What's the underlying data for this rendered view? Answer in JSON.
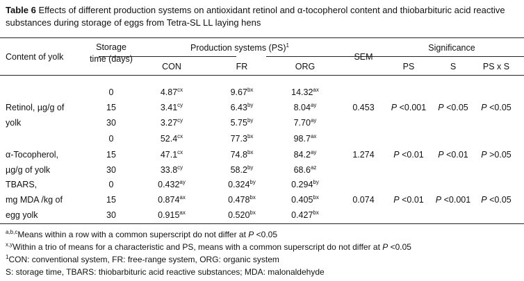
{
  "title": {
    "label": "Table 6",
    "text": "Effects of different production systems on antioxidant retinol and α-tocopherol content and thiobarbituric acid reactive substances during storage of eggs from Tetra-SL LL laying hens"
  },
  "header": {
    "content": "Content of yolk",
    "storage1": "Storage",
    "storage2": "time (days)",
    "ps": "Production systems (PS)",
    "ps_sup": "1",
    "con": "CON",
    "fr": "FR",
    "org": "ORG",
    "sem": "SEM",
    "significance": "Significance",
    "sig_ps": "PS",
    "sig_s": "S",
    "sig_psxs": "PS x S"
  },
  "groups": [
    {
      "label": [
        "Retinol, µg/g of",
        "yolk"
      ],
      "sem": "0.453",
      "sig": [
        "P <0.001",
        "P <0.05",
        "P <0.05"
      ],
      "rows": [
        {
          "t": "0",
          "v": [
            [
              "4.87",
              "cx"
            ],
            [
              "9.67",
              "bx"
            ],
            [
              "14.32",
              "ax"
            ]
          ]
        },
        {
          "t": "15",
          "v": [
            [
              "3.41",
              "cy"
            ],
            [
              "6.43",
              "by"
            ],
            [
              "8.04",
              "ay"
            ]
          ]
        },
        {
          "t": "30",
          "v": [
            [
              "3.27",
              "cy"
            ],
            [
              "5.75",
              "by"
            ],
            [
              "7.70",
              "ay"
            ]
          ]
        }
      ]
    },
    {
      "label": [
        "α-Tocopherol,",
        "µg/g of yolk"
      ],
      "sem": "1.274",
      "sig": [
        "P <0.01",
        "P <0.01",
        "P >0.05"
      ],
      "rows": [
        {
          "t": "0",
          "v": [
            [
              "52.4",
              "cx"
            ],
            [
              "77.3",
              "bx"
            ],
            [
              "98.7",
              "ax"
            ]
          ]
        },
        {
          "t": "15",
          "v": [
            [
              "47.1",
              "cx"
            ],
            [
              "74.8",
              "bx"
            ],
            [
              "84.2",
              "ay"
            ]
          ]
        },
        {
          "t": "30",
          "v": [
            [
              "33.8",
              "cy"
            ],
            [
              "58.2",
              "by"
            ],
            [
              "68.6",
              "az"
            ]
          ]
        }
      ]
    },
    {
      "label": [
        "TBARS,",
        "mg MDA /kg of",
        "egg yolk"
      ],
      "sem": "0.074",
      "sig": [
        "P <0.01",
        "P <0.001",
        "P <0.05"
      ],
      "rows": [
        {
          "t": "0",
          "v": [
            [
              "0.432",
              "ay"
            ],
            [
              "0.324",
              "by"
            ],
            [
              "0.294",
              "by"
            ]
          ]
        },
        {
          "t": "15",
          "v": [
            [
              "0.874",
              "ax"
            ],
            [
              "0.478",
              "bx"
            ],
            [
              "0.405",
              "bx"
            ]
          ]
        },
        {
          "t": "30",
          "v": [
            [
              "0.915",
              "ax"
            ],
            [
              "0.520",
              "bx"
            ],
            [
              "0.427",
              "bx"
            ]
          ]
        }
      ]
    }
  ],
  "footnotes": [
    {
      "sup": "a,b,c",
      "text": "Means within a row with a common superscript do not differ at P <0.05"
    },
    {
      "sup": "x,y",
      "text": "Within a trio of means for a characteristic and PS, means with a common superscript do not differ at P <0.05"
    },
    {
      "sup": "1",
      "text": "CON: conventional system, FR: free-range system, ORG: organic system"
    },
    {
      "sup": "",
      "text": "S: storage time, TBARS: thiobarbituric acid reactive substances; MDA: malonaldehyde"
    }
  ]
}
